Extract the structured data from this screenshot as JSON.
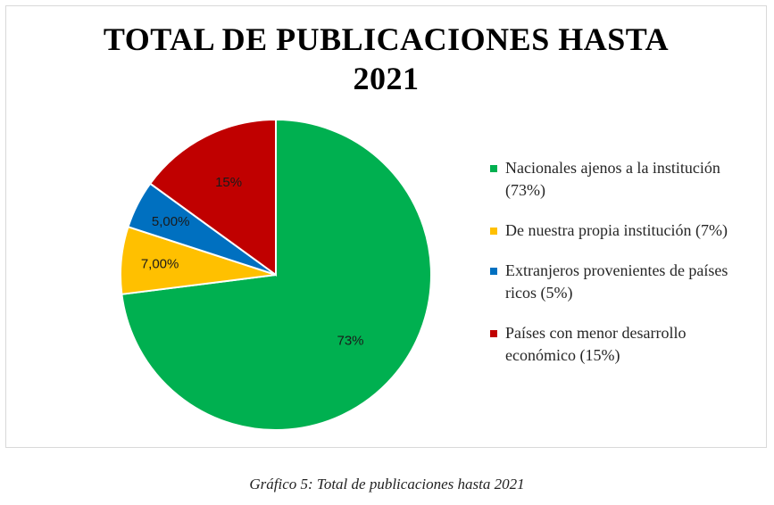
{
  "chart_data": {
    "type": "pie",
    "title_line1": "TOTAL DE PUBLICACIONES HASTA",
    "title_line2": "2021",
    "slices": [
      {
        "label": "Nacionales ajenos a la institución (73%)",
        "value": 73,
        "data_label": "73%",
        "color": "#00b050"
      },
      {
        "label": "De nuestra propia institución (7%)",
        "value": 7,
        "data_label": "7,00%",
        "color": "#ffc000"
      },
      {
        "label": "Extranjeros provenientes de países ricos (5%)",
        "value": 5,
        "data_label": "5,00%",
        "color": "#0070c0"
      },
      {
        "label": "Países con menor desarrollo económico (15%)",
        "value": 15,
        "data_label": "15%",
        "color": "#c00000"
      }
    ],
    "legend_position": "right"
  },
  "caption": "Gráfico 5: Total de publicaciones hasta 2021"
}
